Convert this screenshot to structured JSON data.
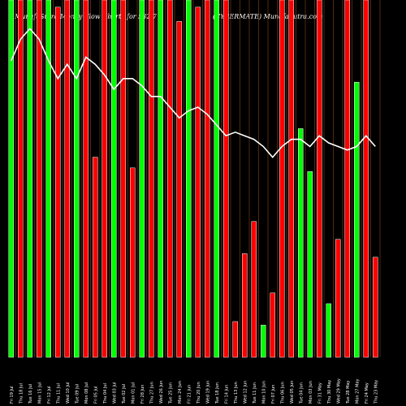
{
  "header": {
    "left_title": "MunafaSutra Money Flow Charts for 532 7",
    "right_title": "(CYBERMATE) MunafaSutra.com"
  },
  "colors": {
    "background": "#000000",
    "up": "#00ff00",
    "down": "#ff0000",
    "line": "#ffffff",
    "grid": "#8b4513"
  },
  "chart_data": {
    "type": "bar",
    "categories": [
      "Fri 19 Jul",
      "Thu 18 Jul",
      "Tue 16 Jul",
      "Mon 15 Jul",
      "Fri 12 Jul",
      "Thu 11 Jul",
      "Wed 10 Jul",
      "Tue 09 Jul",
      "Mon 08 Jul",
      "Fri 05 Jul",
      "Thu 04 Jul",
      "Wed 03 Jul",
      "Tue 02 Jul",
      "Mon 01 Jul",
      "Fri 28 Jun",
      "Thu 27 Jun",
      "Wed 26 Jun",
      "Tue 25 Jun",
      "Mon 24 Jun",
      "Fri 21 Jun",
      "Thu 20 Jun",
      "Wed 19 Jun",
      "Tue 18 Jun",
      "Fri 14 Jun",
      "Thu 13 Jun",
      "Wed 12 Jun",
      "Tue 11 Jun",
      "Mon 10 Jun",
      "Fri 07 Jun",
      "Thu 06 Jun",
      "Wed 05 Jun",
      "Tue 04 Jun",
      "Mon 03 Jun",
      "Fri 31 May",
      "Thu 30 May",
      "Wed 29 May",
      "Tue 28 May",
      "Mon 27 May",
      "Fri 24 May",
      "Thu 23 May"
    ],
    "series": [
      {
        "values": [
          100,
          100,
          100,
          100,
          100,
          98,
          100,
          100,
          100,
          56,
          100,
          100,
          100,
          53,
          100,
          100,
          100,
          100,
          94,
          100,
          98,
          100,
          100,
          100,
          10,
          29,
          38,
          9,
          18,
          100,
          100,
          64,
          52,
          100,
          15,
          33,
          100,
          77,
          100,
          28
        ]
      },
      {
        "directions": [
          "up",
          "down",
          "up",
          "down",
          "up",
          "down",
          "down",
          "up",
          "down",
          "down",
          "down",
          "up",
          "down",
          "down",
          "up",
          "down",
          "up",
          "down",
          "down",
          "up",
          "down",
          "down",
          "up",
          "down",
          "down",
          "down",
          "down",
          "up",
          "down",
          "down",
          "down",
          "up",
          "up",
          "down",
          "up",
          "down",
          "down",
          "up",
          "down",
          "down"
        ]
      },
      {
        "values": [
          83,
          89,
          92,
          89,
          83,
          78,
          82,
          78,
          84,
          82,
          79,
          75,
          78,
          78,
          76,
          73,
          73,
          70,
          67,
          69,
          70,
          68,
          65,
          62,
          63,
          62,
          61,
          59,
          56,
          59,
          61,
          61,
          59,
          62,
          60,
          59,
          58,
          59,
          62,
          59
        ]
      }
    ],
    "ylim": [
      0,
      100
    ],
    "grid": true,
    "legend": "none"
  }
}
